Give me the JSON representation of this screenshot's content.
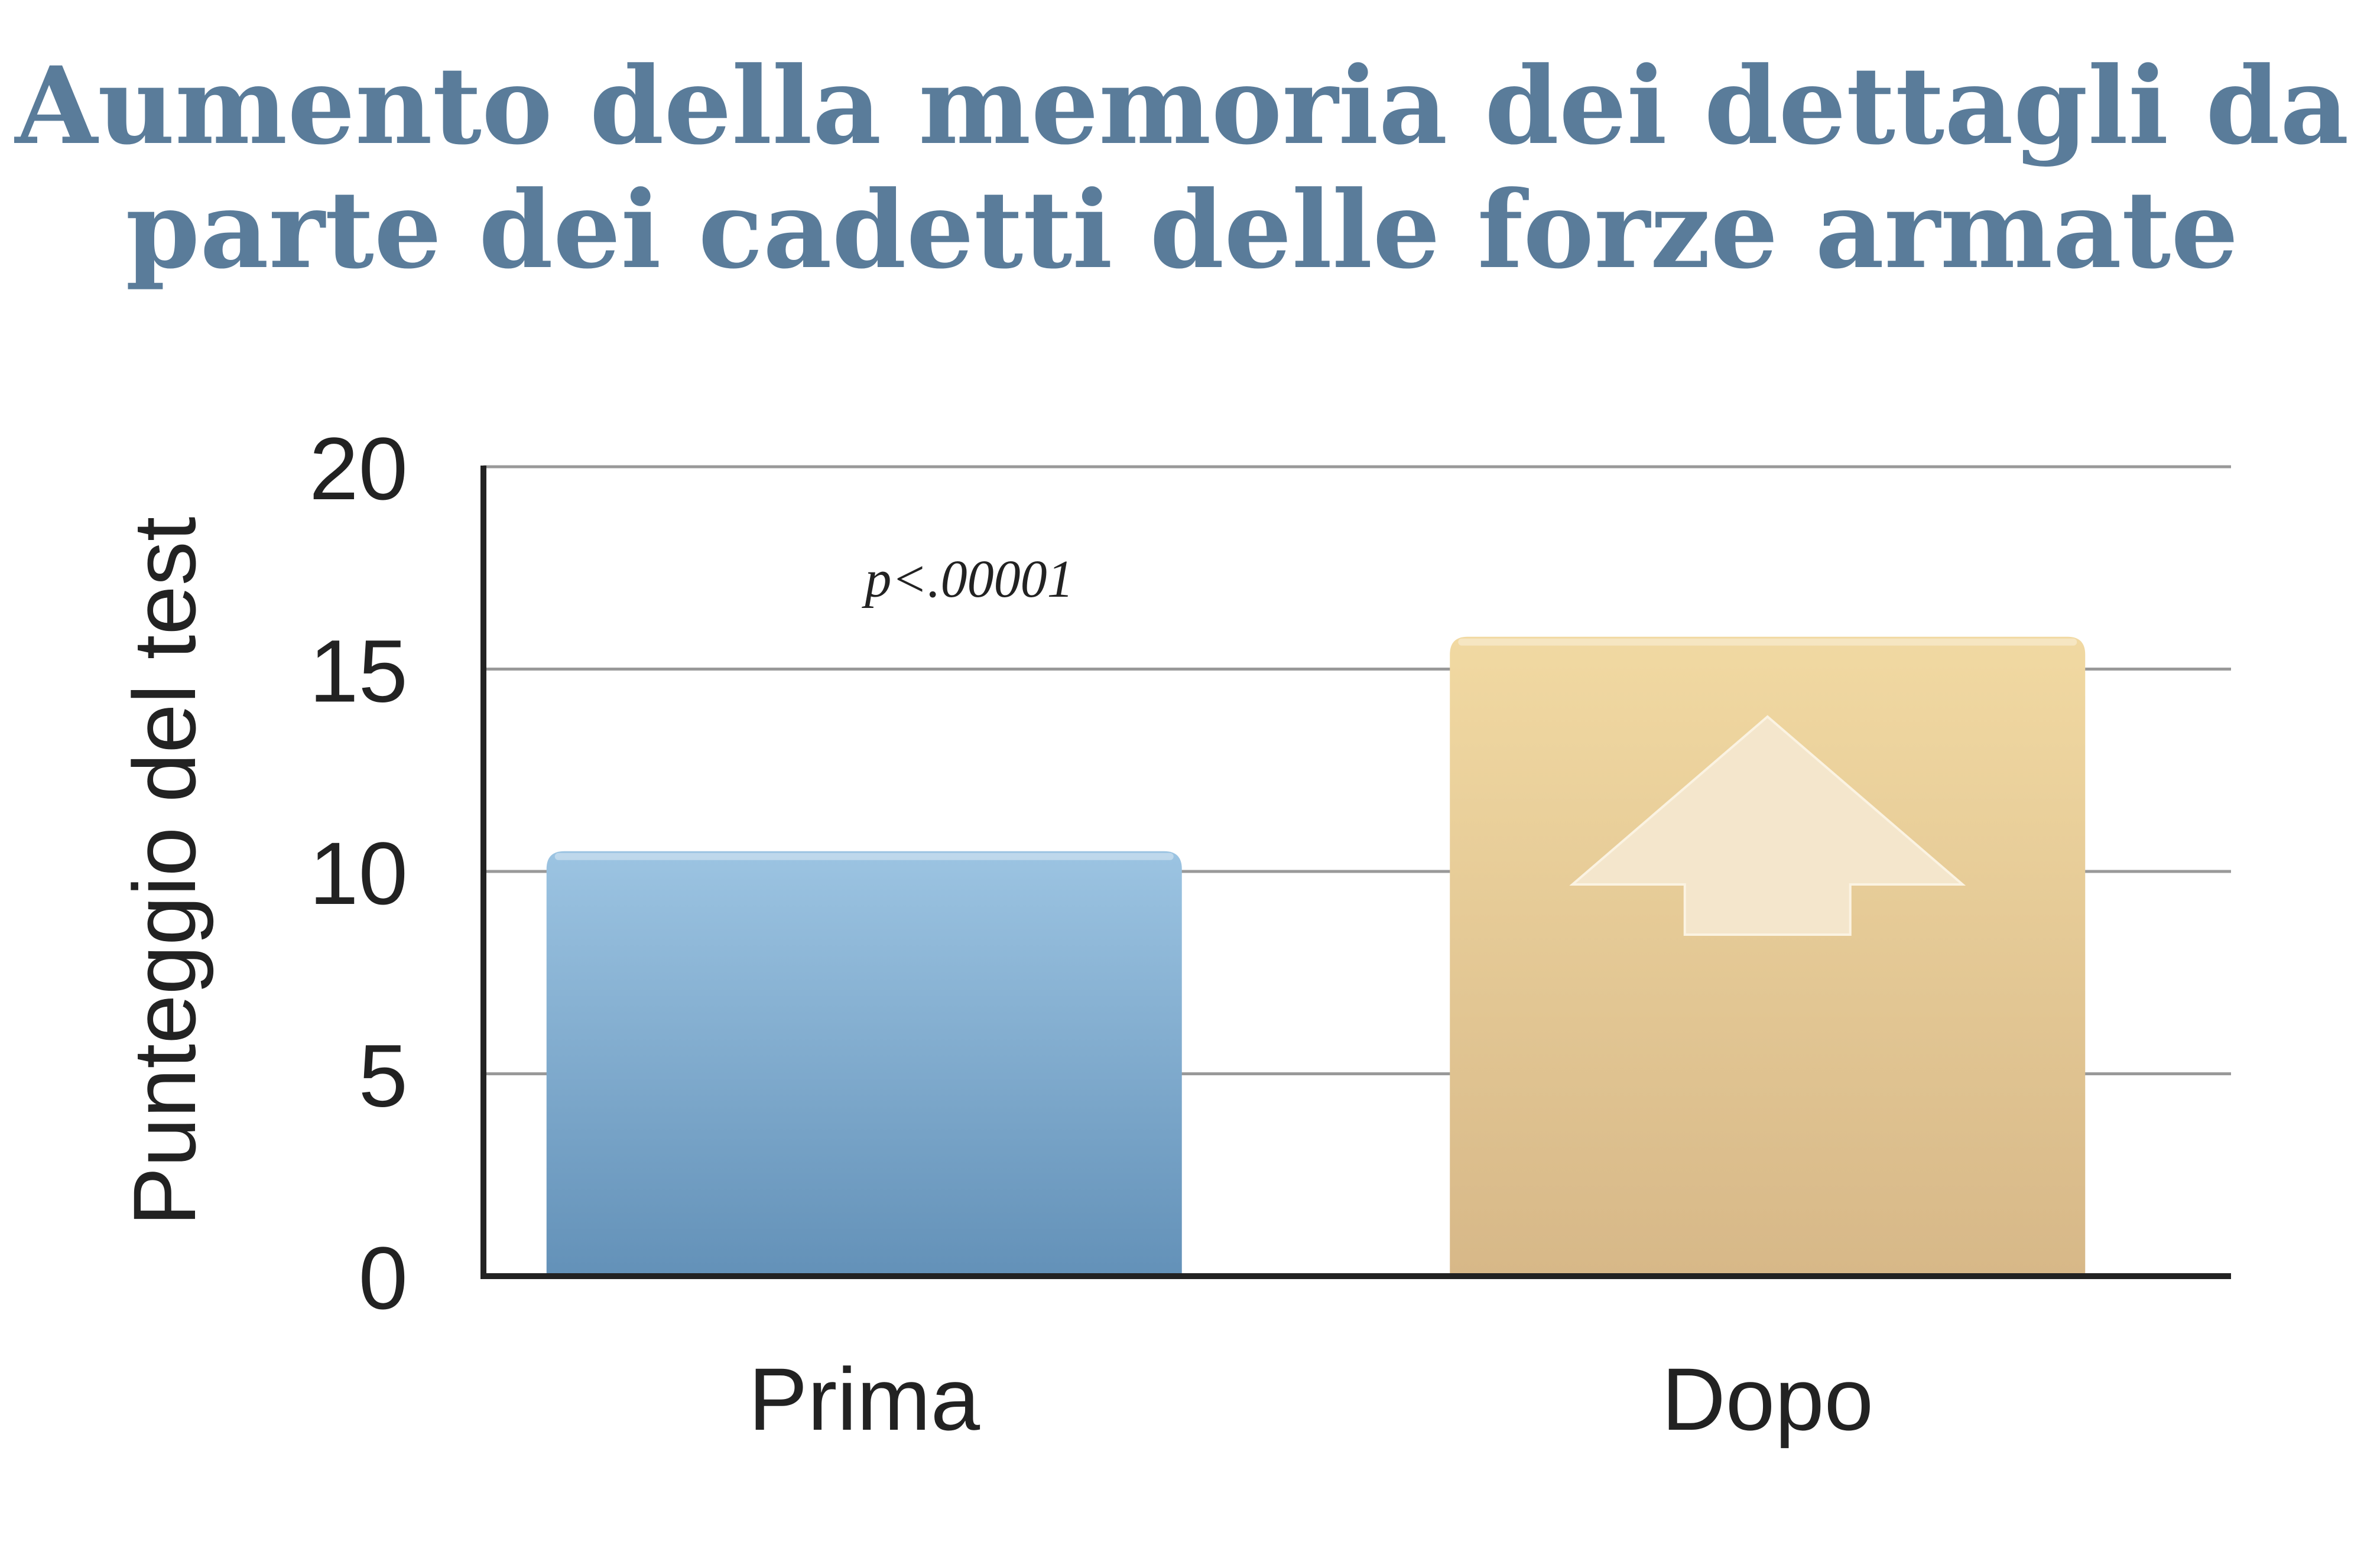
{
  "title_lines": [
    "Aumento della memoria dei dettagli da",
    "parte dei cadetti delle forze armate"
  ],
  "colors": {
    "title": "#5a7c9a",
    "bar_prima_top": "#9cc4e2",
    "bar_prima_bottom": "#6391b8",
    "bar_dopo_top": "#f1d9a2",
    "bar_dopo_bottom": "#d7b888",
    "arrow": "#f4e6cc",
    "grid": "#999999",
    "axis": "#222222"
  },
  "chart_data": {
    "type": "bar",
    "title": "Aumento della memoria dei dettagli da parte dei cadetti delle forze armate",
    "xlabel": "",
    "ylabel": "Punteggio del test",
    "categories": [
      "Prima",
      "Dopo"
    ],
    "values": [
      10.5,
      15.8
    ],
    "ylim": [
      0,
      20
    ],
    "yticks": [
      0,
      5,
      10,
      15,
      20
    ],
    "grid": true,
    "annotation": "p<.00001",
    "icons": [
      "up-arrow-icon"
    ]
  }
}
